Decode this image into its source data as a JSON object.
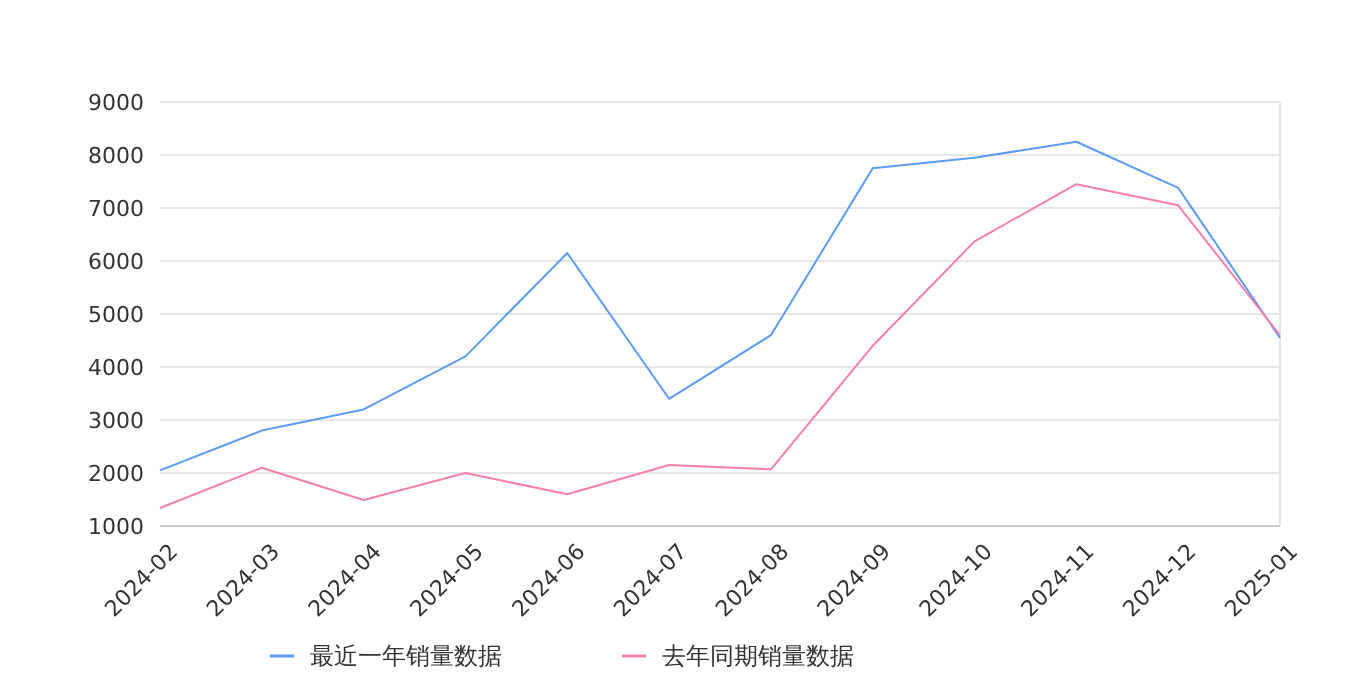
{
  "chart_data": {
    "type": "line",
    "categories": [
      "2024-02",
      "2024-03",
      "2024-04",
      "2024-05",
      "2024-06",
      "2024-07",
      "2024-08",
      "2024-09",
      "2024-10",
      "2024-11",
      "2024-12",
      "2025-01"
    ],
    "series": [
      {
        "name": "最近一年销量数据",
        "color": "#5b9bf5",
        "values": [
          2050,
          2800,
          3200,
          4200,
          6150,
          3400,
          4600,
          7750,
          7950,
          8250,
          7380,
          4550
        ]
      },
      {
        "name": "去年同期销量数据",
        "color": "#f57fac",
        "values": [
          1340,
          2100,
          1490,
          2000,
          1600,
          2150,
          2070,
          4400,
          6370,
          7450,
          7050,
          4600
        ]
      }
    ],
    "ylim": [
      1000,
      9000
    ],
    "yticks": [
      1000,
      2000,
      3000,
      4000,
      5000,
      6000,
      7000,
      8000,
      9000
    ],
    "grid": "y",
    "legend": "bottom",
    "marker": "none",
    "line_style": "solid"
  }
}
